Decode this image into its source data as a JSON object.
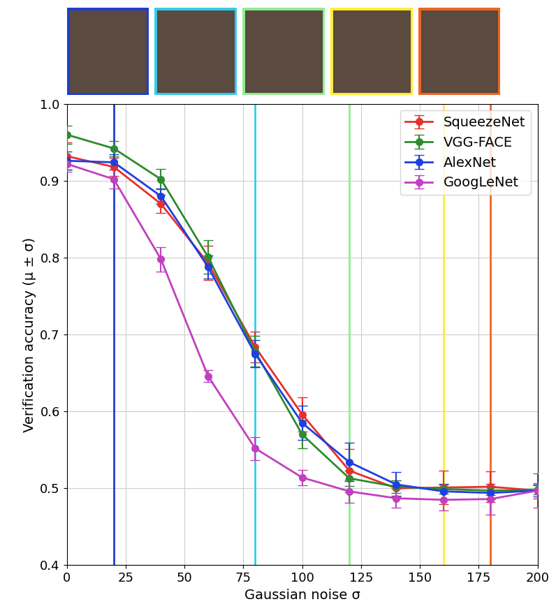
{
  "chart_data": {
    "type": "line",
    "x_label": "Gaussian noise σ",
    "y_label": "Verification accuracy (μ ± σ)",
    "x": [
      0,
      20,
      40,
      60,
      80,
      100,
      120,
      140,
      160,
      180,
      200
    ],
    "series": [
      {
        "name": "SqueezeNet",
        "color": "#e8302a",
        "marker": "o",
        "values": [
          0.932,
          0.918,
          0.87,
          0.793,
          0.684,
          0.596,
          0.523,
          0.5,
          0.501,
          0.502,
          0.497
        ],
        "error": [
          0.018,
          0.012,
          0.012,
          0.022,
          0.02,
          0.022,
          0.028,
          0.01,
          0.022,
          0.02,
          0.01
        ]
      },
      {
        "name": "VGG-FACE",
        "color": "#2e8b2e",
        "marker": "o",
        "values": [
          0.96,
          0.942,
          0.902,
          0.801,
          0.678,
          0.57,
          0.513,
          0.502,
          0.499,
          0.497,
          0.498
        ],
        "error": [
          0.012,
          0.01,
          0.013,
          0.022,
          0.02,
          0.018,
          0.01,
          0.008,
          0.006,
          0.006,
          0.006
        ]
      },
      {
        "name": "AlexNet",
        "color": "#1f3fe0",
        "marker": "o",
        "values": [
          0.926,
          0.924,
          0.88,
          0.788,
          0.675,
          0.585,
          0.534,
          0.505,
          0.496,
          0.494,
          0.497
        ],
        "error": [
          0.012,
          0.01,
          0.01,
          0.015,
          0.018,
          0.022,
          0.025,
          0.016,
          0.01,
          0.008,
          0.008
        ]
      },
      {
        "name": "GoogLeNet",
        "color": "#c040c0",
        "marker": "o",
        "values": [
          0.922,
          0.902,
          0.798,
          0.646,
          0.552,
          0.514,
          0.496,
          0.487,
          0.485,
          0.486,
          0.497
        ],
        "error": [
          0.01,
          0.012,
          0.016,
          0.008,
          0.015,
          0.01,
          0.015,
          0.012,
          0.014,
          0.02,
          0.022
        ]
      }
    ],
    "vertical_lines": [
      {
        "x": 20,
        "color": "#1f3fd0"
      },
      {
        "x": 80,
        "color": "#33ccee"
      },
      {
        "x": 120,
        "color": "#90ee90"
      },
      {
        "x": 160,
        "color": "#ffee33"
      },
      {
        "x": 180,
        "color": "#ee6622"
      }
    ],
    "xlim": [
      0,
      200
    ],
    "xticks": [
      0,
      25,
      50,
      75,
      100,
      125,
      150,
      175,
      200
    ],
    "ylim": [
      0.4,
      1.0
    ],
    "yticks": [
      0.4,
      0.5,
      0.6,
      0.7,
      0.8,
      0.9,
      1.0
    ],
    "grid": true,
    "legend": "upper right"
  }
}
